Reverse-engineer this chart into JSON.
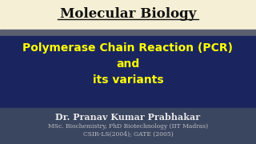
{
  "title": "Molecular Biology",
  "main_line1": "Polymerase Chain Reaction (PCR)",
  "main_line2": "and",
  "main_line3": "its variants",
  "author": "Dr. Pranav Kumar Prabhakar",
  "credentials1": "MSc. Biochemistry, PhD Biotechnology (IIT Madras)",
  "credentials2": "CSIR-LS(2004); GATE (2005)",
  "bg_top": "#f5f0d5",
  "bg_mid": "#1a2560",
  "bg_stripe": "#5a6070",
  "bg_bot": "#3a4560",
  "title_color": "#111111",
  "main_text_color": "#ffff00",
  "author_color": "#e8e8e8",
  "cred_color": "#c0c0c0",
  "underline_color": "#111111"
}
